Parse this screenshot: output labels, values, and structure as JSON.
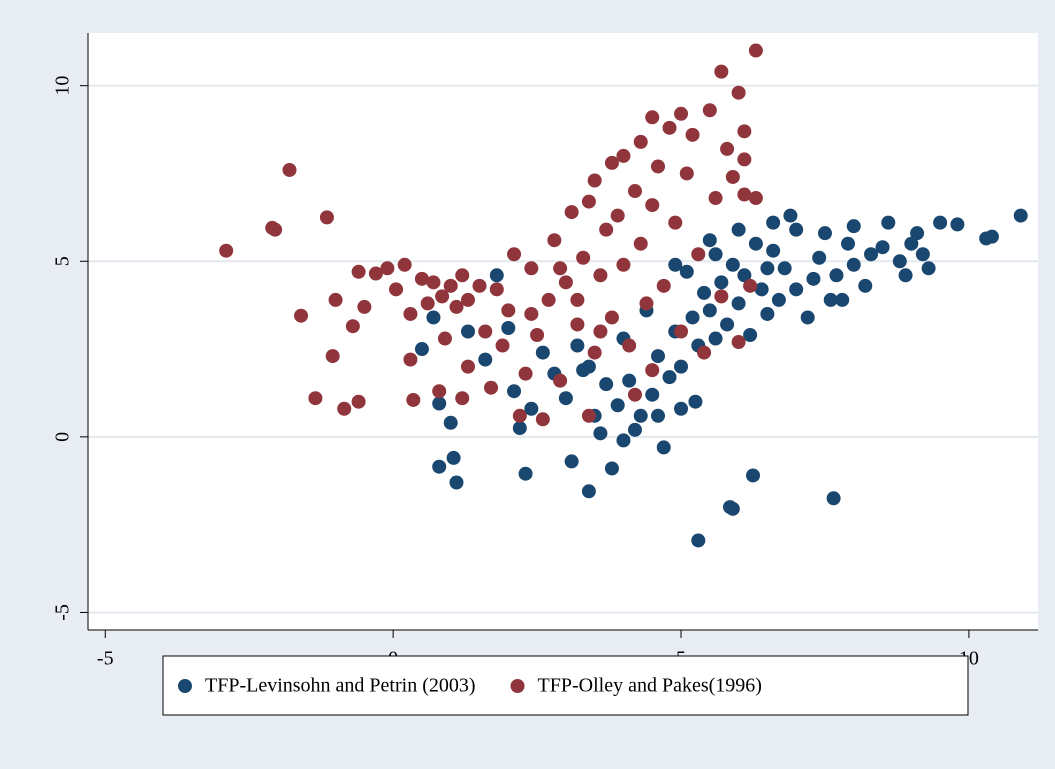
{
  "chart_data": {
    "type": "scatter",
    "xlim": [
      -5.3,
      11.2
    ],
    "ylim": [
      -5.5,
      11.5
    ],
    "xticks": [
      -5,
      0,
      5,
      10
    ],
    "yticks": [
      -5,
      0,
      5,
      10
    ],
    "grid": true,
    "legend": "bottom",
    "series": [
      {
        "name": "TFP-Levinsohn and Petrin (2003)",
        "color": "#1a476f",
        "x": [
          10.9,
          10.4,
          10.3,
          9.8,
          9.5,
          9.2,
          9.3,
          9.0,
          8.8,
          8.6,
          8.5,
          8.3,
          8.0,
          8.0,
          7.8,
          7.6,
          7.5,
          7.4,
          7.3,
          7.2,
          7.0,
          7.0,
          6.9,
          6.8,
          6.6,
          6.5,
          6.4,
          6.3,
          6.2,
          6.1,
          6.0,
          5.9,
          5.8,
          5.7,
          5.6,
          5.5,
          5.4,
          5.3,
          5.2,
          5.1,
          5.0,
          4.9,
          4.8,
          4.6,
          4.5,
          4.3,
          4.2,
          4.0,
          3.9,
          3.8,
          3.7,
          3.6,
          3.5,
          3.4,
          3.3,
          3.2,
          3.1,
          3.0,
          2.8,
          2.6,
          2.4,
          2.3,
          2.2,
          2.1,
          2.0,
          1.8,
          1.6,
          1.3,
          1.1,
          1.05,
          1.0,
          0.8,
          0.8,
          0.7,
          0.5,
          5.3,
          5.85,
          5.9,
          6.25,
          7.65,
          5.25,
          4.6,
          4.7,
          5.0,
          4.1,
          4.9,
          6.7,
          7.7,
          8.2,
          8.9,
          9.1,
          6.0,
          5.5,
          6.6,
          7.9,
          3.4,
          4.0,
          4.4,
          5.6,
          6.5
        ],
        "values": [
          6.3,
          5.7,
          5.65,
          6.05,
          6.1,
          5.2,
          4.8,
          5.5,
          5.0,
          6.1,
          5.4,
          5.2,
          4.9,
          6.0,
          3.9,
          3.9,
          5.8,
          5.1,
          4.5,
          3.4,
          5.9,
          4.2,
          6.3,
          4.8,
          5.3,
          3.5,
          4.2,
          5.5,
          2.9,
          4.6,
          3.8,
          4.9,
          3.2,
          4.4,
          5.2,
          3.6,
          4.1,
          2.6,
          3.4,
          4.7,
          2.0,
          3.0,
          1.7,
          2.3,
          1.2,
          0.6,
          0.2,
          -0.1,
          0.9,
          -0.9,
          1.5,
          0.1,
          0.6,
          -1.55,
          1.9,
          2.6,
          -0.7,
          1.1,
          1.8,
          2.4,
          0.8,
          -1.05,
          0.25,
          1.3,
          3.1,
          4.6,
          2.2,
          3.0,
          -1.3,
          -0.6,
          0.4,
          -0.85,
          0.95,
          3.4,
          2.5,
          -2.95,
          -2.0,
          -2.05,
          -1.1,
          -1.75,
          1.0,
          0.6,
          -0.3,
          0.8,
          1.6,
          4.9,
          3.9,
          4.6,
          4.3,
          4.6,
          5.8,
          5.9,
          5.6,
          6.1,
          5.5,
          2.0,
          2.8,
          3.6,
          2.8,
          4.8
        ]
      },
      {
        "name": "TFP-Olley and Pakes(1996)",
        "color": "#90353b",
        "x": [
          -2.9,
          -1.8,
          -2.1,
          -2.05,
          -1.15,
          -1.6,
          -1.35,
          -1.0,
          -1.05,
          -0.85,
          -0.6,
          -0.7,
          -0.5,
          -0.6,
          -0.3,
          -0.1,
          0.05,
          0.2,
          0.3,
          0.3,
          0.35,
          0.5,
          0.6,
          0.7,
          0.8,
          0.85,
          0.9,
          1.0,
          1.1,
          1.2,
          1.3,
          1.3,
          1.2,
          1.5,
          1.6,
          1.7,
          1.8,
          1.9,
          2.0,
          2.1,
          2.2,
          2.3,
          2.4,
          2.5,
          2.6,
          2.7,
          2.8,
          2.9,
          3.0,
          3.1,
          3.2,
          3.3,
          3.4,
          3.4,
          3.5,
          3.5,
          3.6,
          3.7,
          3.8,
          3.8,
          3.9,
          4.0,
          4.0,
          4.1,
          4.2,
          4.3,
          4.3,
          4.4,
          4.5,
          4.5,
          4.6,
          4.7,
          4.8,
          4.9,
          5.0,
          5.0,
          5.1,
          5.2,
          5.3,
          5.4,
          5.5,
          5.6,
          5.7,
          5.8,
          5.9,
          6.0,
          6.1,
          6.1,
          6.2,
          6.3,
          6.3,
          6.1,
          5.7,
          6.0,
          4.2,
          4.5,
          3.2,
          2.4,
          3.6,
          2.9
        ],
        "values": [
          5.3,
          7.6,
          5.95,
          5.9,
          6.25,
          3.45,
          1.1,
          3.9,
          2.3,
          0.8,
          1.0,
          3.15,
          3.7,
          4.7,
          4.65,
          4.8,
          4.2,
          4.9,
          3.5,
          2.2,
          1.05,
          4.5,
          3.8,
          4.4,
          1.3,
          4.0,
          2.8,
          4.3,
          3.7,
          4.6,
          2.0,
          3.9,
          1.1,
          4.3,
          3.0,
          1.4,
          4.2,
          2.6,
          3.6,
          5.2,
          0.6,
          1.8,
          4.8,
          2.9,
          0.5,
          3.9,
          5.6,
          1.6,
          4.4,
          6.4,
          3.2,
          5.1,
          6.7,
          0.6,
          2.4,
          7.3,
          4.6,
          5.9,
          7.8,
          3.4,
          6.3,
          8.0,
          4.9,
          2.6,
          7.0,
          8.4,
          5.5,
          3.8,
          9.1,
          6.6,
          7.7,
          4.3,
          8.8,
          6.1,
          9.2,
          3.0,
          7.5,
          8.6,
          5.2,
          2.4,
          9.3,
          6.8,
          10.4,
          8.2,
          7.4,
          9.8,
          6.9,
          7.9,
          4.3,
          11.0,
          6.8,
          8.7,
          4.0,
          2.7,
          1.2,
          1.9,
          3.9,
          3.5,
          3.0,
          4.8
        ]
      }
    ]
  }
}
